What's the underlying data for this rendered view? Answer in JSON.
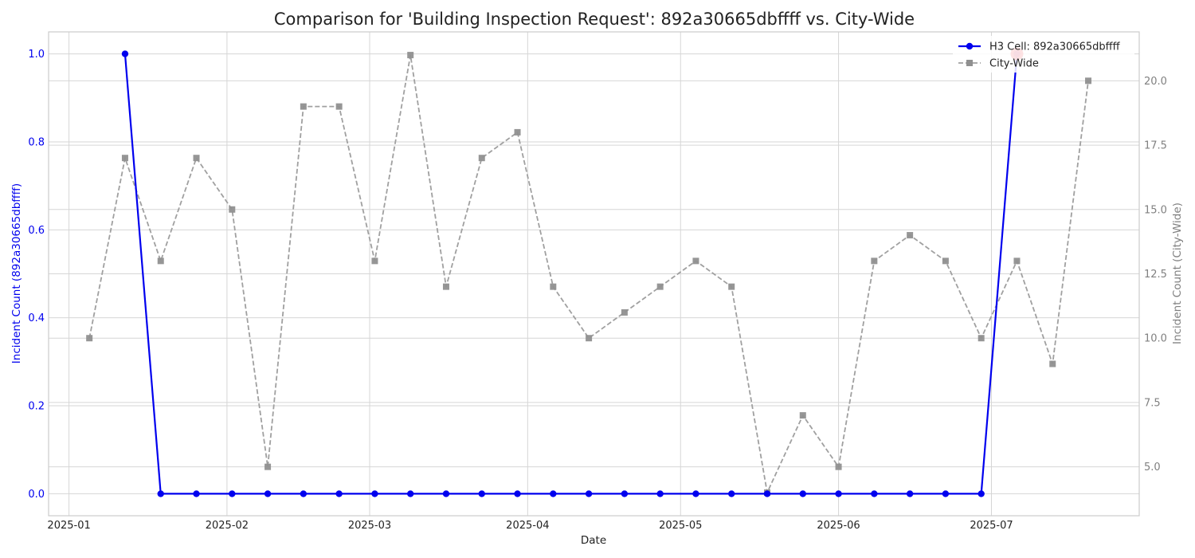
{
  "chart_data": {
    "type": "line",
    "title": "Comparison for 'Building Inspection Request': 892a30665dbffff vs. City-Wide",
    "xlabel": "Date",
    "ylabel_left": "Incident Count (892a30665dbffff)",
    "ylabel_right": "Incident Count (City-Wide)",
    "xlim": [
      "2024-12-28",
      "2025-07-30"
    ],
    "ylim_left": [
      -0.05,
      1.05
    ],
    "ylim_right": [
      3.1,
      21.9
    ],
    "x_ticks": [
      "2025-01",
      "2025-02",
      "2025-03",
      "2025-04",
      "2025-05",
      "2025-06",
      "2025-07"
    ],
    "y_ticks_left": [
      0.0,
      0.2,
      0.4,
      0.6,
      0.8,
      1.0
    ],
    "y_ticks_left_labels": [
      "0.0",
      "0.2",
      "0.4",
      "0.6",
      "0.8",
      "1.0"
    ],
    "y_ticks_right": [
      5.0,
      7.5,
      10.0,
      12.5,
      15.0,
      17.5,
      20.0
    ],
    "y_ticks_right_labels": [
      "5.0",
      "7.5",
      "10.0",
      "12.5",
      "15.0",
      "17.5",
      "20.0"
    ],
    "grid": true,
    "legend_position": "top-right",
    "colors": {
      "h3": "#0000ee",
      "city": "#a0a0a0",
      "highlight": "#ee1c25"
    },
    "series": [
      {
        "name": "H3 Cell: 892a30665dbffff",
        "axis": "left",
        "style": "solid-circle",
        "x": [
          "2025-01-12",
          "2025-01-19",
          "2025-01-26",
          "2025-02-02",
          "2025-02-09",
          "2025-02-16",
          "2025-02-23",
          "2025-03-02",
          "2025-03-09",
          "2025-03-16",
          "2025-03-23",
          "2025-03-30",
          "2025-04-06",
          "2025-04-13",
          "2025-04-20",
          "2025-04-27",
          "2025-05-04",
          "2025-05-11",
          "2025-05-18",
          "2025-05-25",
          "2025-06-01",
          "2025-06-08",
          "2025-06-15",
          "2025-06-22",
          "2025-06-29",
          "2025-07-06"
        ],
        "y": [
          1,
          0,
          0,
          0,
          0,
          0,
          0,
          0,
          0,
          0,
          0,
          0,
          0,
          0,
          0,
          0,
          0,
          0,
          0,
          0,
          0,
          0,
          0,
          0,
          0,
          1
        ]
      },
      {
        "name": "City-Wide",
        "axis": "right",
        "style": "dashed-square",
        "x": [
          "2025-01-05",
          "2025-01-12",
          "2025-01-19",
          "2025-01-26",
          "2025-02-02",
          "2025-02-09",
          "2025-02-16",
          "2025-02-23",
          "2025-03-02",
          "2025-03-09",
          "2025-03-16",
          "2025-03-23",
          "2025-03-30",
          "2025-04-06",
          "2025-04-13",
          "2025-04-20",
          "2025-04-27",
          "2025-05-04",
          "2025-05-11",
          "2025-05-18",
          "2025-05-25",
          "2025-06-01",
          "2025-06-08",
          "2025-06-15",
          "2025-06-22",
          "2025-06-29",
          "2025-07-06",
          "2025-07-13",
          "2025-07-20"
        ],
        "y": [
          10,
          17,
          13,
          17,
          15,
          5,
          19,
          19,
          13,
          21,
          12,
          17,
          18,
          12,
          10,
          11,
          12,
          13,
          12,
          4,
          7,
          5,
          13,
          14,
          13,
          10,
          13,
          9,
          20
        ]
      }
    ],
    "highlight_point": {
      "x": "2025-07-06",
      "y": 1,
      "axis": "left"
    }
  }
}
